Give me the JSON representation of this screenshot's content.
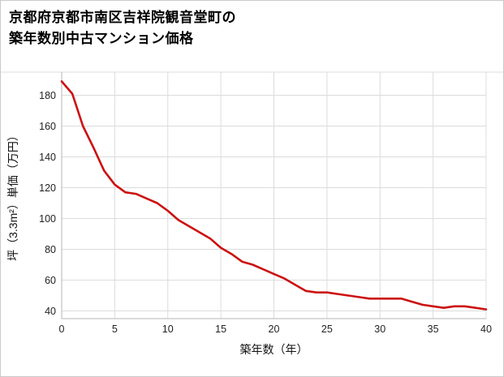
{
  "header": {
    "title_line1": "京都府京都市南区吉祥院観音堂町の",
    "title_line2": "築年数別中古マンション価格"
  },
  "colors": {
    "line": "#cc1111",
    "grid": "#dcdcdc",
    "axis": "#b5b5b5",
    "tick_text": "#222222",
    "border": "#c9c9c9"
  },
  "chart_data": {
    "type": "line",
    "title": "京都府京都市南区吉祥院観音堂町の築年数別中古マンション価格",
    "xlabel": "築年数（年）",
    "ylabel": "坪（3.3m²）単価（万円）",
    "x": [
      0,
      1,
      2,
      3,
      4,
      5,
      6,
      7,
      8,
      9,
      10,
      11,
      12,
      13,
      14,
      15,
      16,
      17,
      18,
      19,
      20,
      21,
      22,
      23,
      24,
      25,
      26,
      27,
      28,
      29,
      30,
      31,
      32,
      33,
      34,
      35,
      36,
      37,
      38,
      39,
      40
    ],
    "values": [
      189,
      181,
      160,
      146,
      131,
      122,
      117,
      116,
      113,
      110,
      105,
      99,
      95,
      91,
      87,
      81,
      77,
      72,
      70,
      67,
      64,
      61,
      57,
      53,
      52,
      52,
      51,
      50,
      49,
      48,
      48,
      48,
      48,
      46,
      44,
      43,
      42,
      43,
      43,
      42,
      41
    ],
    "xticks": [
      0,
      5,
      10,
      15,
      20,
      25,
      30,
      35,
      40
    ],
    "yticks": [
      40,
      60,
      80,
      100,
      120,
      140,
      160,
      180
    ],
    "xlim": [
      0,
      40
    ],
    "ylim": [
      35,
      195
    ],
    "grid": true,
    "legend": "none"
  }
}
